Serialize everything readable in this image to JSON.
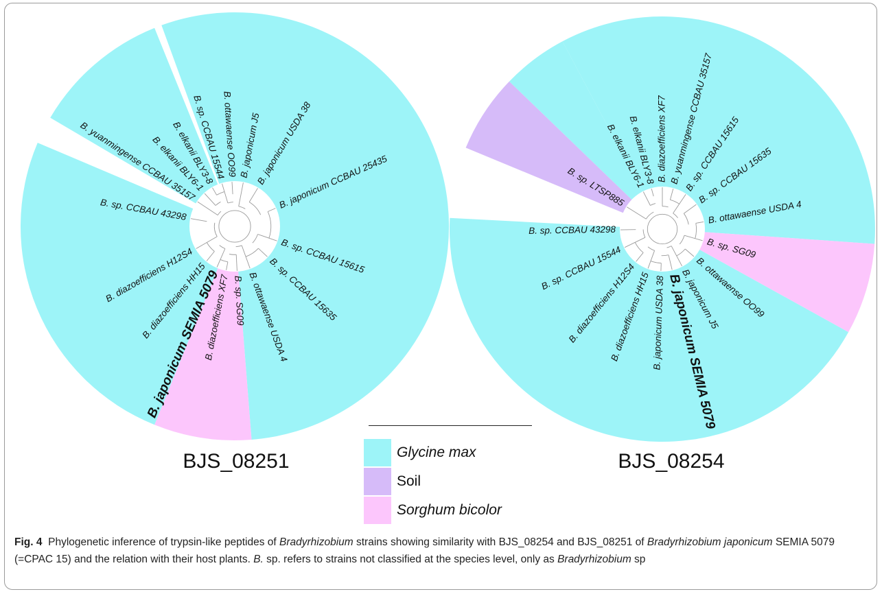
{
  "trees": [
    {
      "title": "BJS_08251",
      "sectors": [
        {
          "host": "Glycine max",
          "start": -20,
          "end": 175.5
        },
        {
          "host": "Sorghum bicolor",
          "start": 175.5,
          "end": 202
        },
        {
          "host": "Glycine max",
          "start": 202,
          "end": 293
        },
        {
          "host": "Glycine max",
          "start": 300.5,
          "end": 338
        }
      ],
      "leaves": [
        {
          "name": "B. yuanmingense CCBAU 35157",
          "angle": 303.5
        },
        {
          "name": "B. elkanii BLY6-1",
          "angle": 317.5
        },
        {
          "name": "B. elkanii BLY3-8",
          "angle": 330
        },
        {
          "name": "B. sp. CCBAU 15544",
          "angle": 343.5
        },
        {
          "name": "B. ottawaense OO99",
          "angle": 356.5
        },
        {
          "name": "B. japonicum J5",
          "angle": 11
        },
        {
          "name": "B. japonicum USDA 38",
          "angle": 31
        },
        {
          "name": "B. japonicum CCBAU 25435",
          "angle": 66
        },
        {
          "name": "B. sp. CCBAU 15615",
          "angle": 109
        },
        {
          "name": "B. sp. CCBAU 15635",
          "angle": 133
        },
        {
          "name": "B. ottawaense USDA 4",
          "angle": 160
        },
        {
          "name": "B. sp. SG09",
          "angle": 177
        },
        {
          "name": "B. diazoefficiens XF7",
          "angle": 191
        },
        {
          "name": "B. japonicum SEMIA 5079",
          "angle": 203.5,
          "bold": true
        },
        {
          "name": "B. diazoefficiens HH15",
          "angle": 219
        },
        {
          "name": "B. diazoefficiens H12S4",
          "angle": 240
        },
        {
          "name": "B. sp. CCBAU 43298",
          "angle": 280
        }
      ]
    },
    {
      "title": "BJS_08254",
      "sectors": [
        {
          "host": "Glycine max",
          "start": -28,
          "end": 94
        },
        {
          "host": "Sorghum bicolor",
          "start": 94,
          "end": 119
        },
        {
          "host": "Glycine max",
          "start": 119,
          "end": 273
        },
        {
          "host": "Soil",
          "start": 292.5,
          "end": 314
        },
        {
          "host": "Glycine max",
          "start": 314,
          "end": 332
        }
      ],
      "leaves": [
        {
          "name": "B. sp. LTSP885",
          "angle": 302
        },
        {
          "name": "B. elkanii BLY6-1",
          "angle": 333
        },
        {
          "name": "B. elkanii BLY3-8",
          "angle": 345
        },
        {
          "name": "B. diazoefficiens XF7",
          "angle": 0
        },
        {
          "name": "B. yuanmingense CCBAU 35157",
          "angle": 15
        },
        {
          "name": "B. sp. CCBAU 15615",
          "angle": 34
        },
        {
          "name": "B. sp. CCBAU 15635",
          "angle": 54
        },
        {
          "name": "B. ottawaense USDA 4",
          "angle": 80
        },
        {
          "name": "B. sp. SG09",
          "angle": 106
        },
        {
          "name": "B. ottawaense OO99",
          "angle": 131
        },
        {
          "name": "B. japonicum J5",
          "angle": 152
        },
        {
          "name": "B. japonicum SEMIA 5079",
          "angle": 166.5,
          "bold": true
        },
        {
          "name": "B. japonicum USDA 38",
          "angle": 182
        },
        {
          "name": "B. diazoefficiens HH15",
          "angle": 200
        },
        {
          "name": "B. diazoefficiens H12S4",
          "angle": 219
        },
        {
          "name": "B. sp. CCBAU 15544",
          "angle": 244
        },
        {
          "name": "B. sp. CCBAU 43298",
          "angle": 269
        }
      ]
    }
  ],
  "legend": [
    {
      "label": "Glycine max",
      "color": "#9df4f8",
      "italic": true
    },
    {
      "label": "Soil",
      "color": "#d6bbf9",
      "italic": false
    },
    {
      "label": "Sorghum bicolor",
      "color": "#fcc6fc",
      "italic": true
    }
  ],
  "caption": {
    "figure_label": "Fig. 4",
    "text_1": "Phylogenetic inference of trypsin-like peptides of ",
    "genus": "Bradyrhizobium",
    "text_2": " strains showing similarity with BJS_08254 and BJS_08251 of ",
    "species": "Bradyrhizobium japonicum",
    "text_3": " SEMIA 5079 (=CPAC 15) and the relation with their host plants. ",
    "bsp": "B.",
    "text_4": " sp. refers to strains not classified at the species level, only as ",
    "genus_2": "Bradyrhizobium",
    "text_5": " sp"
  }
}
